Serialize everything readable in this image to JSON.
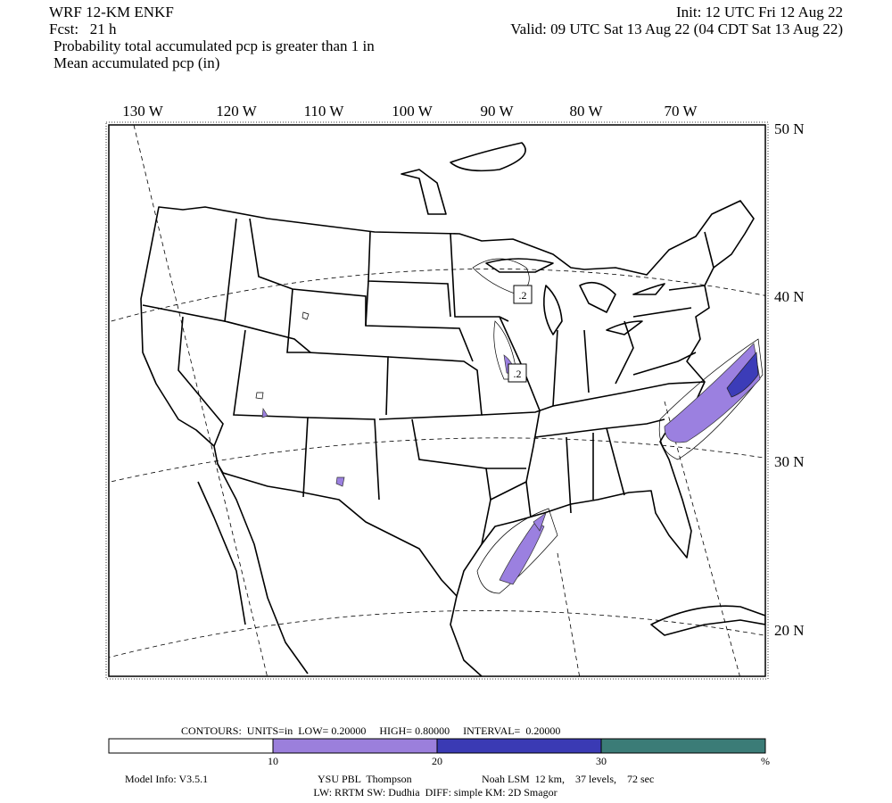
{
  "header": {
    "model": "WRF 12-KM ENKF",
    "fcst": "Fcst:   21 h",
    "init": "Init: 12 UTC Fri 12 Aug 22",
    "valid": "Valid: 09 UTC Sat 13 Aug 22 (04 CDT Sat 13 Aug 22)",
    "field1": "Probability total accumulated pcp is greater than 1 in",
    "field2": "Mean accumulated pcp (in)"
  },
  "map": {
    "lon_labels": [
      "130 W",
      "120 W",
      "110 W",
      "100 W",
      "90 W",
      "80 W",
      "70 W"
    ],
    "lat_labels": [
      "50 N",
      "40 N",
      "30 N",
      "20 N"
    ],
    "contour_labels": [
      ".2",
      ".2"
    ]
  },
  "colorbar": {
    "contours": "CONTOURS:  UNITS=in  LOW= 0.20000     HIGH= 0.80000     INTERVAL=  0.20000",
    "colors": [
      "#ffffff",
      "#9b7fdc",
      "#3a3ab4",
      "#3b7c77"
    ],
    "labels": [
      "10",
      "20",
      "30",
      "%"
    ]
  },
  "footer": {
    "model_info": "Model Info: V3.5.1",
    "pbl": "YSU PBL  Thompson",
    "lsm": "Noah LSM  12 km,    37 levels,    72 sec",
    "line2": "LW: RRTM SW: Dudhia  DIFF: simple KM: 2D Smagor"
  }
}
